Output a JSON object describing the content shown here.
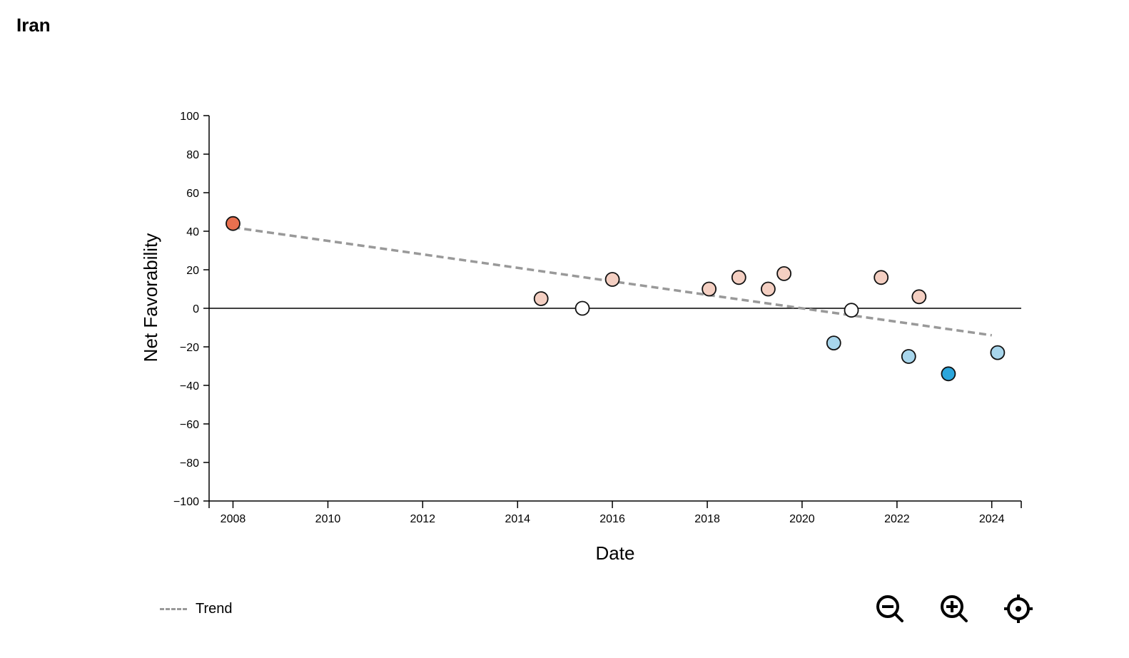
{
  "title": "Iran",
  "chart_data": {
    "type": "scatter",
    "title": "",
    "xlabel": "Date",
    "ylabel": "Net Favorability",
    "xlim": [
      "2007-07-01",
      "2024-08-15"
    ],
    "ylim": [
      -100,
      100
    ],
    "x_ticks": [
      "2008",
      "2010",
      "2012",
      "2014",
      "2016",
      "2018",
      "2020",
      "2022",
      "2024"
    ],
    "y_ticks": [
      100,
      80,
      60,
      40,
      20,
      0,
      -20,
      -40,
      -60,
      -80,
      -100
    ],
    "grid": false,
    "zero_line": true,
    "points": [
      {
        "x": "2008-01-01",
        "y": 44
      },
      {
        "x": "2014-07-01",
        "y": 5
      },
      {
        "x": "2015-05-15",
        "y": 0
      },
      {
        "x": "2016-01-01",
        "y": 15
      },
      {
        "x": "2018-01-15",
        "y": 10
      },
      {
        "x": "2018-09-01",
        "y": 16
      },
      {
        "x": "2019-04-15",
        "y": 10
      },
      {
        "x": "2019-08-15",
        "y": 18
      },
      {
        "x": "2020-09-01",
        "y": -18
      },
      {
        "x": "2021-01-15",
        "y": -1
      },
      {
        "x": "2021-09-01",
        "y": 16
      },
      {
        "x": "2022-04-01",
        "y": -25
      },
      {
        "x": "2022-06-20",
        "y": 6
      },
      {
        "x": "2023-02-01",
        "y": -34
      },
      {
        "x": "2024-02-15",
        "y": -23
      }
    ],
    "trend": {
      "name": "Trend",
      "start": {
        "x": "2008-01-01",
        "y": 42
      },
      "end": {
        "x": "2024-01-01",
        "y": -14
      }
    },
    "legend": "bottom-left",
    "colors": {
      "trend": "#999999",
      "positive_strong": "#e8704f",
      "positive_light": "#f4cfc2",
      "neutral": "#ffffff",
      "negative_light": "#a8d6ec",
      "negative_strong": "#2ba6dc",
      "point_stroke": "#111111"
    }
  },
  "legend": {
    "trend_label": "Trend"
  },
  "controls": [
    {
      "icon": "zoom-out-icon"
    },
    {
      "icon": "zoom-in-icon"
    },
    {
      "icon": "recenter-icon"
    }
  ]
}
